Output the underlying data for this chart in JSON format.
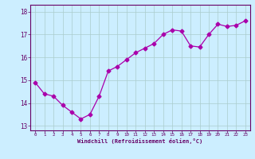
{
  "x": [
    0,
    1,
    2,
    3,
    4,
    5,
    6,
    7,
    8,
    9,
    10,
    11,
    12,
    13,
    14,
    15,
    16,
    17,
    18,
    19,
    20,
    21,
    22,
    23
  ],
  "y": [
    14.9,
    14.4,
    14.3,
    13.9,
    13.6,
    13.3,
    13.5,
    14.3,
    15.4,
    15.6,
    15.9,
    16.2,
    16.4,
    16.6,
    17.0,
    17.2,
    17.15,
    16.5,
    16.45,
    17.0,
    17.45,
    17.35,
    17.4,
    17.6
  ],
  "line_color": "#aa00aa",
  "marker": "D",
  "marker_size": 2.5,
  "bg_color": "#cceeff",
  "grid_color": "#aacccc",
  "xlabel": "Windchill (Refroidissement éolien,°C)",
  "xlabel_color": "#660066",
  "tick_color": "#660066",
  "ylim": [
    12.8,
    18.3
  ],
  "xlim": [
    -0.5,
    23.5
  ],
  "yticks": [
    13,
    14,
    15,
    16,
    17,
    18
  ],
  "xticks": [
    0,
    1,
    2,
    3,
    4,
    5,
    6,
    7,
    8,
    9,
    10,
    11,
    12,
    13,
    14,
    15,
    16,
    17,
    18,
    19,
    20,
    21,
    22,
    23
  ]
}
